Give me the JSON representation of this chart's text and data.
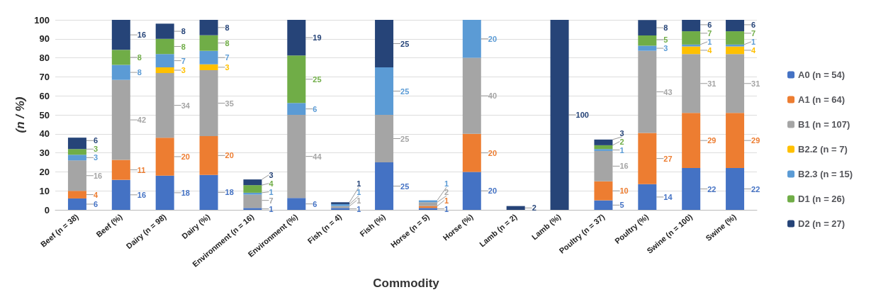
{
  "chart_data": {
    "type": "bar",
    "stacked": true,
    "xlabel": "Commodity",
    "ylabel": "(n / %)",
    "categories": [
      "Beef (n = 38)",
      "Beef (%)",
      "Dairy (n = 98)",
      "Dairy (%)",
      "Environment (n = 16)",
      "Environment (%)",
      "Fish (n = 4)",
      "Fish (%)",
      "Horse (n = 5)",
      "Horse (%)",
      "Lamb (n = 2)",
      "Lamb (%)",
      "Poultry (n = 37)",
      "Poultry (%)",
      "Swine (n = 100)",
      "Swine (%)"
    ],
    "ylim": [
      0,
      100
    ],
    "yticks": [
      0,
      10,
      20,
      30,
      40,
      50,
      60,
      70,
      80,
      90,
      100
    ],
    "grid": "y",
    "legend": "right",
    "series": [
      {
        "name": "A0 (n = 54)",
        "color": "#4472c4",
        "values": [
          6,
          15.8,
          18,
          18.4,
          1,
          6.25,
          1,
          25,
          1,
          20,
          null,
          null,
          5,
          13.5,
          22,
          22
        ],
        "value_labels": [
          "6",
          "16",
          "18",
          "18",
          "1",
          "6",
          "1",
          "25",
          "1",
          "20",
          null,
          null,
          "5",
          "14",
          "22",
          "22"
        ]
      },
      {
        "name": "A1 (n = 64)",
        "color": "#ed7d31",
        "values": [
          4,
          10.5,
          20,
          20.4,
          null,
          null,
          null,
          null,
          1,
          20,
          null,
          null,
          10,
          27.0,
          29,
          29
        ],
        "value_labels": [
          "4",
          "11",
          "20",
          "20",
          null,
          null,
          null,
          null,
          "1",
          "20",
          null,
          null,
          "10",
          "27",
          "29",
          "29"
        ]
      },
      {
        "name": "B1 (n = 107)",
        "color": "#a5a5a5",
        "values": [
          16,
          42.1,
          34,
          34.7,
          7,
          43.75,
          1,
          25,
          2,
          40,
          null,
          null,
          16,
          43.2,
          31,
          31
        ],
        "value_labels": [
          "16",
          "42",
          "34",
          "35",
          "7",
          "44",
          "1",
          "25",
          "2",
          "40",
          null,
          null,
          "16",
          "43",
          "31",
          "31"
        ]
      },
      {
        "name": "B2.2 (n = 7)",
        "color": "#ffc000",
        "values": [
          null,
          null,
          3,
          3.1,
          null,
          null,
          null,
          null,
          null,
          null,
          null,
          null,
          null,
          null,
          4,
          4
        ],
        "value_labels": [
          null,
          null,
          "3",
          "3",
          null,
          null,
          null,
          null,
          null,
          null,
          null,
          null,
          null,
          null,
          "4",
          "4"
        ]
      },
      {
        "name": "B2.3 (n = 15)",
        "color": "#5b9bd5",
        "values": [
          3,
          7.9,
          7,
          7.1,
          1,
          6.25,
          1,
          25,
          1,
          20,
          null,
          null,
          1,
          2.7,
          1,
          1
        ],
        "value_labels": [
          "3",
          "8",
          "7",
          "7",
          "1",
          "6",
          "1",
          "25",
          "1",
          "20",
          null,
          null,
          "1",
          "3",
          "1",
          "1"
        ]
      },
      {
        "name": "D1 (n = 26)",
        "color": "#70ad47",
        "values": [
          3,
          7.9,
          8,
          8.2,
          4,
          25,
          null,
          null,
          null,
          null,
          null,
          null,
          2,
          5.4,
          7,
          7
        ],
        "value_labels": [
          "3",
          "8",
          "8",
          "8",
          "4",
          "25",
          null,
          null,
          null,
          null,
          null,
          null,
          "2",
          "5",
          "7",
          "7"
        ]
      },
      {
        "name": "D2 (n = 27)",
        "color": "#264478",
        "values": [
          6,
          15.8,
          8,
          8.2,
          3,
          18.75,
          1,
          25,
          null,
          null,
          2,
          100,
          3,
          8.1,
          6,
          6
        ],
        "value_labels": [
          "6",
          "16",
          "8",
          "8",
          "3",
          "19",
          "1",
          "25",
          null,
          null,
          "2",
          "100",
          "3",
          "8",
          "6",
          "6"
        ]
      }
    ]
  }
}
